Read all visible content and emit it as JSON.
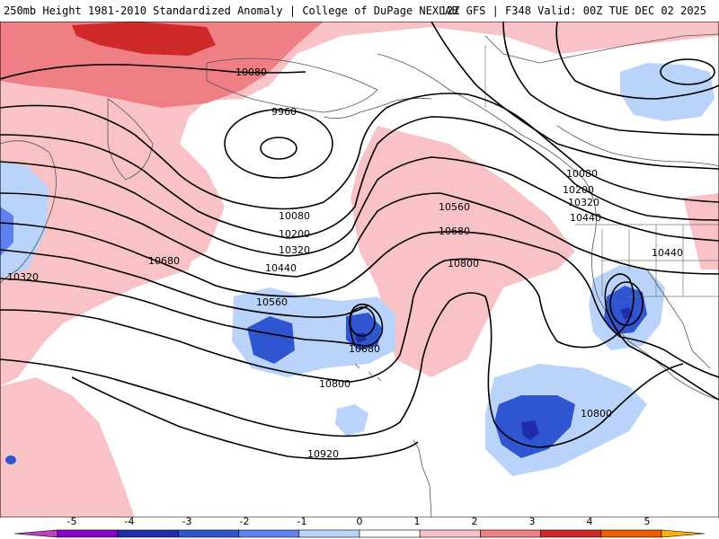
{
  "header": {
    "left_title": "250mb Height 1981-2010 Standardized Anomaly | College of DuPage NEXLAB",
    "right_title": "12Z GFS | F348 Valid: 00Z TUE DEC 02 2025"
  },
  "contour_labels": [
    {
      "id": "c10080a",
      "text": "10080"
    },
    {
      "id": "c9960",
      "text": "9960"
    },
    {
      "id": "c10080b",
      "text": "10080"
    },
    {
      "id": "c10200a",
      "text": "10200"
    },
    {
      "id": "c10320a",
      "text": "10320"
    },
    {
      "id": "c10440a",
      "text": "10440"
    },
    {
      "id": "c10680a",
      "text": "10680"
    },
    {
      "id": "c10320w",
      "text": "10320"
    },
    {
      "id": "c10560a",
      "text": "10560"
    },
    {
      "id": "c10680b",
      "text": "10680"
    },
    {
      "id": "c10800a",
      "text": "10800"
    },
    {
      "id": "c10920",
      "text": "10920"
    },
    {
      "id": "c10560b",
      "text": "10560"
    },
    {
      "id": "c10680c",
      "text": "10680"
    },
    {
      "id": "c10800b",
      "text": "10800"
    },
    {
      "id": "c10080e",
      "text": "10080"
    },
    {
      "id": "c10200e",
      "text": "10200"
    },
    {
      "id": "c10320e",
      "text": "10320"
    },
    {
      "id": "c10440e",
      "text": "10440"
    },
    {
      "id": "c10440f",
      "text": "10440"
    },
    {
      "id": "c10800c",
      "text": "10800"
    }
  ],
  "colorbar": {
    "ticks": [
      "-5",
      "-4",
      "-3",
      "-2",
      "-1",
      "0",
      "1",
      "2",
      "3",
      "4",
      "5"
    ],
    "colors": [
      "#c040c0",
      "#8a00c8",
      "#1f2ea8",
      "#2f55d0",
      "#5f80ef",
      "#b9d3fb",
      "#ffffff",
      "#f8c2c6",
      "#ef7f84",
      "#cf2a2a",
      "#ec5f00",
      "#ffb000"
    ]
  }
}
